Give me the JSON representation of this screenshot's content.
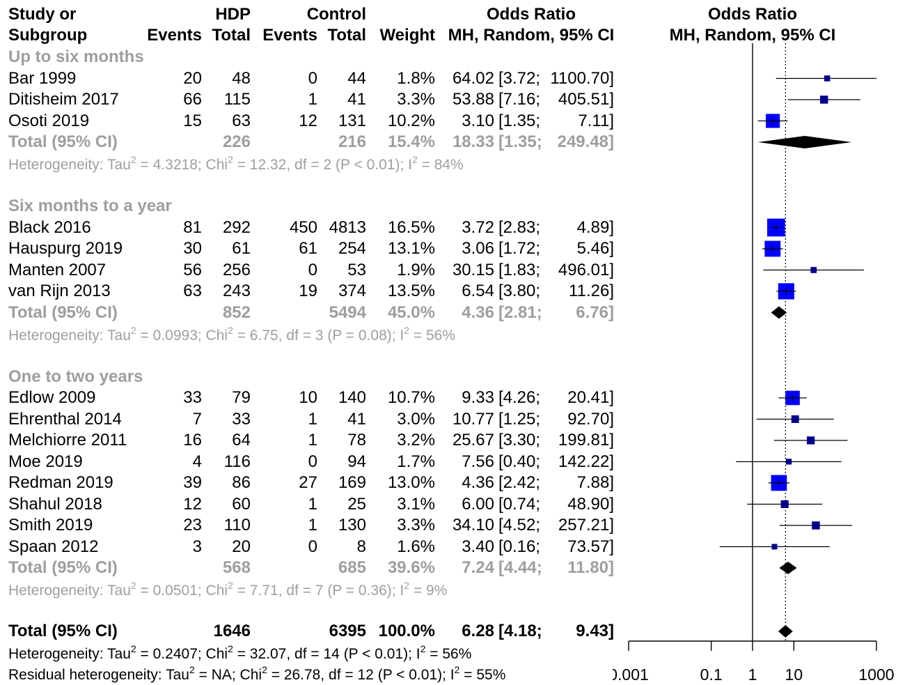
{
  "headers": {
    "study_line1": "Study or",
    "study_line2": "Subgroup",
    "hdp": "HDP",
    "control": "Control",
    "events1": "Events",
    "total1": "Total",
    "events2": "Events",
    "total2": "Total",
    "weight": "Weight",
    "or_line1": "Odds Ratio",
    "or_line2": "MH, Random, 95% CI",
    "plot_line1": "Odds Ratio",
    "plot_line2": "MH, Random, 95% CI"
  },
  "subgroups": [
    {
      "name": "Up to six months",
      "studies": [
        {
          "study": "Bar 1999",
          "e1": "20",
          "t1": "48",
          "e2": "0",
          "t2": "44",
          "weight": "1.8%",
          "or": "64.02",
          "lo": "[3.72;",
          "hi": "1100.70]"
        },
        {
          "study": "Ditisheim 2017",
          "e1": "66",
          "t1": "115",
          "e2": "1",
          "t2": "41",
          "weight": "3.3%",
          "or": "53.88",
          "lo": "[7.16;",
          "hi": "405.51]"
        },
        {
          "study": "Osoti 2019",
          "e1": "15",
          "t1": "63",
          "e2": "12",
          "t2": "131",
          "weight": "10.2%",
          "or": "3.10",
          "lo": "[1.35;",
          "hi": "7.11]"
        }
      ],
      "total": {
        "label": "Total (95% CI)",
        "t1": "226",
        "t2": "216",
        "weight": "15.4%",
        "or": "18.33",
        "lo": "[1.35;",
        "hi": "249.48]"
      },
      "het": {
        "tau2": "4.3218",
        "chi2": "12.32",
        "df": "2",
        "p": "(P < 0.01)",
        "i2": "84%"
      }
    },
    {
      "name": "Six months to a year",
      "studies": [
        {
          "study": "Black 2016",
          "e1": "81",
          "t1": "292",
          "e2": "450",
          "t2": "4813",
          "weight": "16.5%",
          "or": "3.72",
          "lo": "[2.83;",
          "hi": "4.89]"
        },
        {
          "study": "Hauspurg 2019",
          "e1": "30",
          "t1": "61",
          "e2": "61",
          "t2": "254",
          "weight": "13.1%",
          "or": "3.06",
          "lo": "[1.72;",
          "hi": "5.46]"
        },
        {
          "study": "Manten 2007",
          "e1": "56",
          "t1": "256",
          "e2": "0",
          "t2": "53",
          "weight": "1.9%",
          "or": "30.15",
          "lo": "[1.83;",
          "hi": "496.01]"
        },
        {
          "study": "van Rijn 2013",
          "e1": "63",
          "t1": "243",
          "e2": "19",
          "t2": "374",
          "weight": "13.5%",
          "or": "6.54",
          "lo": "[3.80;",
          "hi": "11.26]"
        }
      ],
      "total": {
        "label": "Total (95% CI)",
        "t1": "852",
        "t2": "5494",
        "weight": "45.0%",
        "or": "4.36",
        "lo": "[2.81;",
        "hi": "6.76]"
      },
      "het": {
        "tau2": "0.0993",
        "chi2": "6.75",
        "df": "3",
        "p": "(P = 0.08)",
        "i2": "56%"
      }
    },
    {
      "name": "One to two years",
      "studies": [
        {
          "study": "Edlow 2009",
          "e1": "33",
          "t1": "79",
          "e2": "10",
          "t2": "140",
          "weight": "10.7%",
          "or": "9.33",
          "lo": "[4.26;",
          "hi": "20.41]"
        },
        {
          "study": "Ehrenthal 2014",
          "e1": "7",
          "t1": "33",
          "e2": "1",
          "t2": "41",
          "weight": "3.0%",
          "or": "10.77",
          "lo": "[1.25;",
          "hi": "92.70]"
        },
        {
          "study": "Melchiorre 2011",
          "e1": "16",
          "t1": "64",
          "e2": "1",
          "t2": "78",
          "weight": "3.2%",
          "or": "25.67",
          "lo": "[3.30;",
          "hi": "199.81]"
        },
        {
          "study": "Moe 2019",
          "e1": "4",
          "t1": "116",
          "e2": "0",
          "t2": "94",
          "weight": "1.7%",
          "or": "7.56",
          "lo": "[0.40;",
          "hi": "142.22]"
        },
        {
          "study": "Redman 2019",
          "e1": "39",
          "t1": "86",
          "e2": "27",
          "t2": "169",
          "weight": "13.0%",
          "or": "4.36",
          "lo": "[2.42;",
          "hi": "7.88]"
        },
        {
          "study": "Shahul 2018",
          "e1": "12",
          "t1": "60",
          "e2": "1",
          "t2": "25",
          "weight": "3.1%",
          "or": "6.00",
          "lo": "[0.74;",
          "hi": "48.90]"
        },
        {
          "study": "Smith 2019",
          "e1": "23",
          "t1": "110",
          "e2": "1",
          "t2": "130",
          "weight": "3.3%",
          "or": "34.10",
          "lo": "[4.52;",
          "hi": "257.21]"
        },
        {
          "study": "Spaan 2012",
          "e1": "3",
          "t1": "20",
          "e2": "0",
          "t2": "8",
          "weight": "1.6%",
          "or": "3.40",
          "lo": "[0.16;",
          "hi": "73.57]"
        }
      ],
      "total": {
        "label": "Total (95% CI)",
        "t1": "568",
        "t2": "685",
        "weight": "39.6%",
        "or": "7.24",
        "lo": "[4.44;",
        "hi": "11.80]"
      },
      "het": {
        "tau2": "0.0501",
        "chi2": "7.71",
        "df": "7",
        "p": "(P = 0.36)",
        "i2": "9%"
      }
    }
  ],
  "overall": {
    "label": "Total (95% CI)",
    "t1": "1646",
    "t2": "6395",
    "weight": "100.0%",
    "or": "6.28",
    "lo": "[4.18;",
    "hi": "9.43]"
  },
  "overall_het": {
    "tau2": "0.2407",
    "chi2": "32.07",
    "df": "14",
    "p": "(P < 0.01)",
    "i2": "56%"
  },
  "residual_het": {
    "tau2": "NA",
    "chi2": "26.78",
    "df": "12",
    "p": "(P < 0.01)",
    "i2": "55%"
  },
  "colors": {
    "study_box": "#0000ff",
    "study_box_small": "#00008b",
    "diamond": "#000000",
    "subgroup_text": "#9e9e9e"
  },
  "chart_data": {
    "type": "scatter",
    "scale": "log",
    "xlim": [
      0.001,
      1000
    ],
    "ticks": [
      "0.001",
      "0.1",
      "1",
      "10",
      "1000"
    ],
    "tick_values": [
      0.001,
      0.1,
      1,
      10,
      1000
    ],
    "null_line": 1,
    "pooled_reference": 6.28,
    "studies": [
      {
        "study": "Bar 1999",
        "or": 64.02,
        "lo": 3.72,
        "hi": 1100.7,
        "weight": 1.8
      },
      {
        "study": "Ditisheim 2017",
        "or": 53.88,
        "lo": 7.16,
        "hi": 405.51,
        "weight": 3.3
      },
      {
        "study": "Osoti 2019",
        "or": 3.1,
        "lo": 1.35,
        "hi": 7.11,
        "weight": 10.2
      },
      {
        "study": "Black 2016",
        "or": 3.72,
        "lo": 2.83,
        "hi": 4.89,
        "weight": 16.5
      },
      {
        "study": "Hauspurg 2019",
        "or": 3.06,
        "lo": 1.72,
        "hi": 5.46,
        "weight": 13.1
      },
      {
        "study": "Manten 2007",
        "or": 30.15,
        "lo": 1.83,
        "hi": 496.01,
        "weight": 1.9
      },
      {
        "study": "van Rijn 2013",
        "or": 6.54,
        "lo": 3.8,
        "hi": 11.26,
        "weight": 13.5
      },
      {
        "study": "Edlow 2009",
        "or": 9.33,
        "lo": 4.26,
        "hi": 20.41,
        "weight": 10.7
      },
      {
        "study": "Ehrenthal 2014",
        "or": 10.77,
        "lo": 1.25,
        "hi": 92.7,
        "weight": 3.0
      },
      {
        "study": "Melchiorre 2011",
        "or": 25.67,
        "lo": 3.3,
        "hi": 199.81,
        "weight": 3.2
      },
      {
        "study": "Moe 2019",
        "or": 7.56,
        "lo": 0.4,
        "hi": 142.22,
        "weight": 1.7
      },
      {
        "study": "Redman 2019",
        "or": 4.36,
        "lo": 2.42,
        "hi": 7.88,
        "weight": 13.0
      },
      {
        "study": "Shahul 2018",
        "or": 6.0,
        "lo": 0.74,
        "hi": 48.9,
        "weight": 3.1
      },
      {
        "study": "Smith 2019",
        "or": 34.1,
        "lo": 4.52,
        "hi": 257.21,
        "weight": 3.3
      },
      {
        "study": "Spaan 2012",
        "or": 3.4,
        "lo": 0.16,
        "hi": 73.57,
        "weight": 1.6
      }
    ],
    "subgroup_totals": [
      {
        "subgroup": "Up to six months",
        "or": 18.33,
        "lo": 1.35,
        "hi": 249.48
      },
      {
        "subgroup": "Six months to a year",
        "or": 4.36,
        "lo": 2.81,
        "hi": 6.76
      },
      {
        "subgroup": "One to two years",
        "or": 7.24,
        "lo": 4.44,
        "hi": 11.8
      }
    ],
    "overall": {
      "or": 6.28,
      "lo": 4.18,
      "hi": 9.43
    }
  }
}
